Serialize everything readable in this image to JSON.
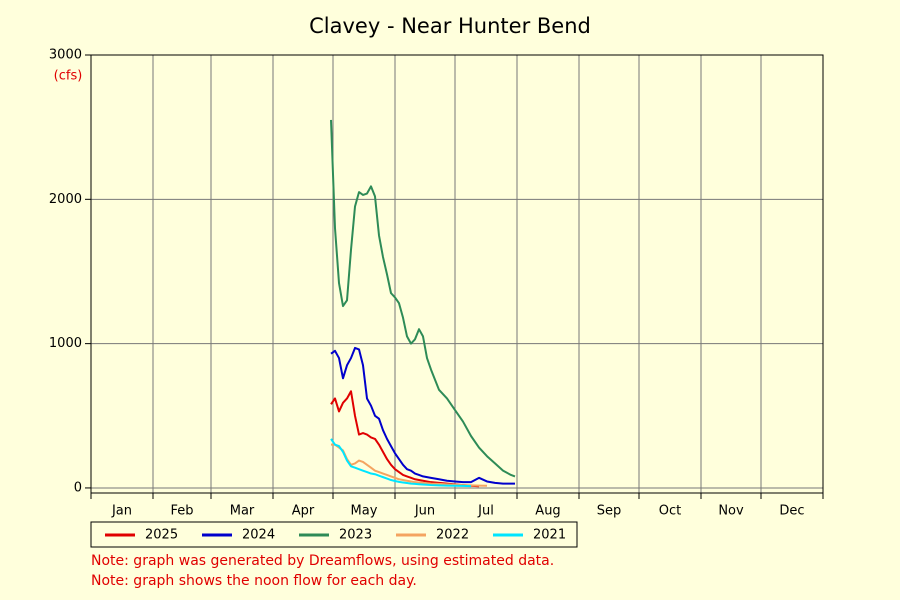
{
  "chart_data": {
    "type": "line",
    "title": "Clavey - Near Hunter Bend",
    "y_unit": "(cfs)",
    "xlim": [
      0,
      366
    ],
    "xticks": [
      {
        "value": 15.5,
        "label": "Jan"
      },
      {
        "value": 45.5,
        "label": "Feb"
      },
      {
        "value": 75.5,
        "label": "Mar"
      },
      {
        "value": 106,
        "label": "Apr"
      },
      {
        "value": 136.5,
        "label": "May"
      },
      {
        "value": 167,
        "label": "Jun"
      },
      {
        "value": 197.5,
        "label": "Jul"
      },
      {
        "value": 228.5,
        "label": "Aug"
      },
      {
        "value": 259,
        "label": "Sep"
      },
      {
        "value": 289.5,
        "label": "Oct"
      },
      {
        "value": 320,
        "label": "Nov"
      },
      {
        "value": 350.5,
        "label": "Dec"
      }
    ],
    "x_gridlines": [
      0,
      31,
      60,
      91,
      121,
      152,
      182,
      213,
      244,
      274,
      305,
      335,
      366
    ],
    "ylim": [
      -35,
      3000
    ],
    "yticks": [
      0,
      1000,
      2000,
      3000
    ],
    "grid": true,
    "x": [
      120,
      122,
      124,
      126,
      128,
      130,
      132,
      134,
      136,
      138,
      140,
      142,
      144,
      146,
      148,
      150,
      152,
      154,
      156,
      158,
      160,
      162,
      164,
      166,
      168,
      170,
      174,
      178,
      182,
      186,
      190,
      194,
      198,
      202,
      206,
      210,
      212
    ],
    "series": [
      {
        "name": "2025",
        "color": "#e00000",
        "values": [
          580,
          620,
          530,
          590,
          620,
          670,
          500,
          370,
          380,
          370,
          350,
          340,
          300,
          250,
          200,
          160,
          130,
          110,
          90,
          80,
          70,
          60,
          55,
          50,
          45,
          40,
          35,
          30,
          25,
          20,
          15,
          12,
          null,
          null,
          null,
          null,
          null
        ]
      },
      {
        "name": "2024",
        "color": "#0000cc",
        "values": [
          930,
          950,
          900,
          760,
          850,
          900,
          970,
          960,
          850,
          620,
          570,
          500,
          480,
          400,
          340,
          290,
          240,
          200,
          160,
          130,
          120,
          100,
          90,
          80,
          75,
          70,
          60,
          50,
          45,
          40,
          40,
          70,
          45,
          35,
          30,
          30,
          30
        ]
      },
      {
        "name": "2023",
        "color": "#2e8b57",
        "values": [
          2550,
          1800,
          1420,
          1260,
          1300,
          1650,
          1950,
          2050,
          2030,
          2040,
          2090,
          2020,
          1750,
          1600,
          1480,
          1350,
          1320,
          1280,
          1180,
          1050,
          1000,
          1030,
          1100,
          1050,
          900,
          820,
          680,
          620,
          540,
          460,
          360,
          280,
          220,
          170,
          120,
          90,
          80
        ]
      },
      {
        "name": "2022",
        "color": "#f4a460",
        "values": [
          300,
          300,
          280,
          260,
          200,
          160,
          170,
          190,
          180,
          160,
          140,
          120,
          110,
          100,
          90,
          80,
          70,
          60,
          55,
          50,
          45,
          40,
          38,
          35,
          33,
          30,
          28,
          25,
          22,
          20,
          18,
          16,
          15,
          null,
          null,
          null,
          null
        ]
      },
      {
        "name": "2021",
        "color": "#00e5ff",
        "values": [
          340,
          300,
          290,
          250,
          190,
          150,
          140,
          130,
          120,
          110,
          100,
          95,
          85,
          75,
          65,
          55,
          48,
          42,
          38,
          34,
          30,
          28,
          26,
          24,
          22,
          20,
          18,
          16,
          15,
          14,
          13,
          null,
          null,
          null,
          null,
          null,
          null
        ]
      }
    ],
    "notes": [
      "Note: graph was generated by Dreamflows, using estimated data.",
      "Note: graph shows the noon flow for each day."
    ]
  }
}
